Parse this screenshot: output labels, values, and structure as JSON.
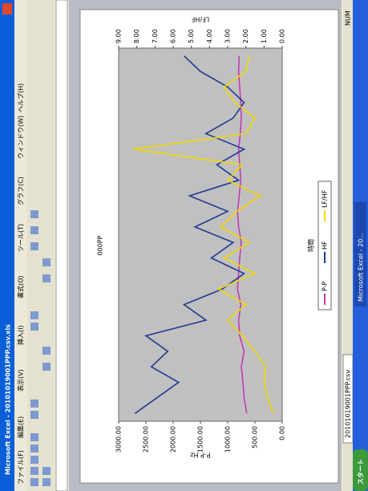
{
  "title_bar": {
    "title": "Microsoft Excel - 20101019001PPP.csv.xls"
  },
  "menu": [
    "ファイル(F)",
    "編集(E)",
    "表示(V)",
    "挿入(I)",
    "書式(O)",
    "ツール(T)",
    "グラフ(C)",
    "ウィンドウ(W)",
    "ヘルプ(H)"
  ],
  "sheet_tab": "20101019001PPP.csv",
  "status": "NUM",
  "taskbar": {
    "start": "スタート",
    "task": "Microsoft Excel - 20..."
  },
  "chart_data": {
    "type": "line",
    "title": "000PP",
    "x_label": "時間",
    "y_label": "P-P Hz",
    "y2_label": "LF/HF",
    "categories": [
      null,
      null,
      null,
      null,
      null,
      null,
      null,
      null,
      null,
      null,
      null,
      null,
      null,
      null,
      null,
      null,
      null,
      null,
      null,
      null,
      null,
      null,
      null,
      null
    ],
    "ylim": [
      0,
      3000
    ],
    "yticks": [
      {
        "value": 0,
        "label": "0.00"
      },
      {
        "value": 500,
        "label": "500.00"
      },
      {
        "value": 1000,
        "label": "1000.00"
      },
      {
        "value": 1500,
        "label": "1500.00"
      },
      {
        "value": 2000,
        "label": "2000.00"
      },
      {
        "value": 2500,
        "label": "2500.00"
      },
      {
        "value": 3000,
        "label": "3000.00"
      }
    ],
    "y2lim": [
      0,
      9
    ],
    "y2ticks": [
      {
        "value": 0,
        "label": "0.00"
      },
      {
        "value": 1,
        "label": "1.00"
      },
      {
        "value": 2,
        "label": "2.00"
      },
      {
        "value": 3,
        "label": "3.00"
      },
      {
        "value": 4,
        "label": "4.00"
      },
      {
        "value": 5,
        "label": "5.00"
      },
      {
        "value": 6,
        "label": "6.00"
      },
      {
        "value": 7,
        "label": "7.00"
      },
      {
        "value": 8,
        "label": "8.00"
      },
      {
        "value": 9,
        "label": "9.00"
      }
    ],
    "series": [
      {
        "name": "P-P",
        "color": "#c03cb4",
        "values": [
          650,
          700,
          720,
          750,
          700,
          780,
          800,
          760,
          820,
          800,
          780,
          750,
          800,
          820,
          790,
          760,
          780,
          800,
          770,
          750,
          760,
          780,
          800,
          790
        ]
      },
      {
        "name": "HF",
        "color": "#1f3a93",
        "values": [
          2700,
          2300,
          1900,
          2400,
          2100,
          2500,
          1400,
          1800,
          1100,
          700,
          1300,
          900,
          1600,
          1000,
          1700,
          800,
          1200,
          700,
          1400,
          900,
          700,
          1000,
          1500,
          1800
        ]
      },
      {
        "name": "LF/HF",
        "color": "#f0d800",
        "axis": "y2",
        "values": [
          0.5,
          0.8,
          1.0,
          0.9,
          1.5,
          2.2,
          3.0,
          2.0,
          3.5,
          1.5,
          3.2,
          1.8,
          3.4,
          2.5,
          1.2,
          3.0,
          2.2,
          8.2,
          2.0,
          1.5,
          2.6,
          3.2,
          2.0,
          1.8
        ]
      }
    ]
  }
}
